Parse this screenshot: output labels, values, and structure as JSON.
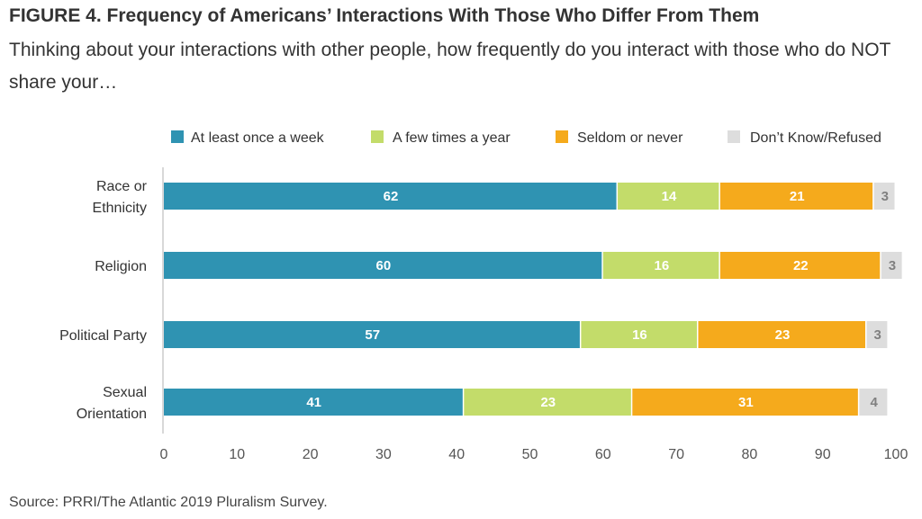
{
  "header": {
    "title": "FIGURE 4. Frequency of Americans’ Interactions With Those Who Differ From Them",
    "subtitle": "Thinking about your interactions with other people, how frequently do you interact with those who do NOT share your…"
  },
  "footer": {
    "source": "Source: PRRI/The Atlantic 2019 Pluralism Survey."
  },
  "chart_data": {
    "type": "bar",
    "orientation": "horizontal",
    "stacked": true,
    "categories": [
      "Race or Ethnicity",
      "Religion",
      "Political Party",
      "Sexual Orientation"
    ],
    "series": [
      {
        "name": "At least once a week",
        "color": "#2f93b2",
        "values": [
          62,
          60,
          57,
          41
        ]
      },
      {
        "name": "A few times a year",
        "color": "#c3dc6a",
        "values": [
          14,
          16,
          16,
          23
        ]
      },
      {
        "name": "Seldom or never",
        "color": "#f5aa1c",
        "values": [
          21,
          22,
          23,
          31
        ]
      },
      {
        "name": "Don’t Know/Refused",
        "color": "#dddddd",
        "values": [
          3,
          3,
          3,
          4
        ]
      }
    ],
    "data_label_colors": [
      "#ffffff",
      "#ffffff",
      "#ffffff",
      "#808080"
    ],
    "xlim": [
      0,
      100
    ],
    "xticks": [
      0,
      10,
      20,
      30,
      40,
      50,
      60,
      70,
      80,
      90,
      100
    ],
    "legend_position": "top-right",
    "grid": false
  }
}
